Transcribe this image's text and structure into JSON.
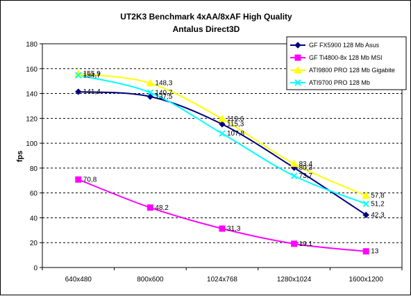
{
  "chart_data": {
    "type": "line",
    "title": "UT2K3 Benchmark 4xAA/8xAF High Quality",
    "subtitle": "Antalus Direct3D",
    "xlabel": "",
    "ylabel": "fps",
    "ylim": [
      0,
      180
    ],
    "yticks": [
      0,
      20,
      40,
      60,
      80,
      100,
      120,
      140,
      160,
      180
    ],
    "grid": true,
    "legend_position": "top-right",
    "categories": [
      "640x480",
      "800x600",
      "1024x768",
      "1280x1024",
      "1600x1200"
    ],
    "series": [
      {
        "name": "GF FX5900 128 Mb Asus",
        "color": "#000080",
        "marker": "diamond",
        "values": [
          141.4,
          137.5,
          115.3,
          80.3,
          42.3
        ],
        "labels": [
          "141,4",
          "137,5",
          "115,3",
          "80,3",
          "42,3"
        ]
      },
      {
        "name": "GF Ti4800-8x 128 Mb MSI",
        "color": "#ff00ff",
        "marker": "square",
        "values": [
          70.8,
          48.2,
          31.3,
          19.1,
          13
        ],
        "labels": [
          "70,8",
          "48,2",
          "31,3",
          "19,1",
          "13"
        ]
      },
      {
        "name": "ATI9800 PRO 128 Mb Gigabite",
        "color": "#ffff00",
        "marker": "triangle",
        "values": [
          155.9,
          148.3,
          119.6,
          83.4,
          57.8
        ],
        "labels": [
          "155,9",
          "148,3",
          "119,6",
          "83,4",
          "57,8"
        ]
      },
      {
        "name": "ATI9700 PRO 128 Mb",
        "color": "#00ffff",
        "marker": "x",
        "values": [
          154.7,
          140.7,
          107.8,
          73.7,
          51.2
        ],
        "labels": [
          "154,7",
          "140,7",
          "107,8",
          "73,7",
          "51,2"
        ]
      }
    ]
  }
}
